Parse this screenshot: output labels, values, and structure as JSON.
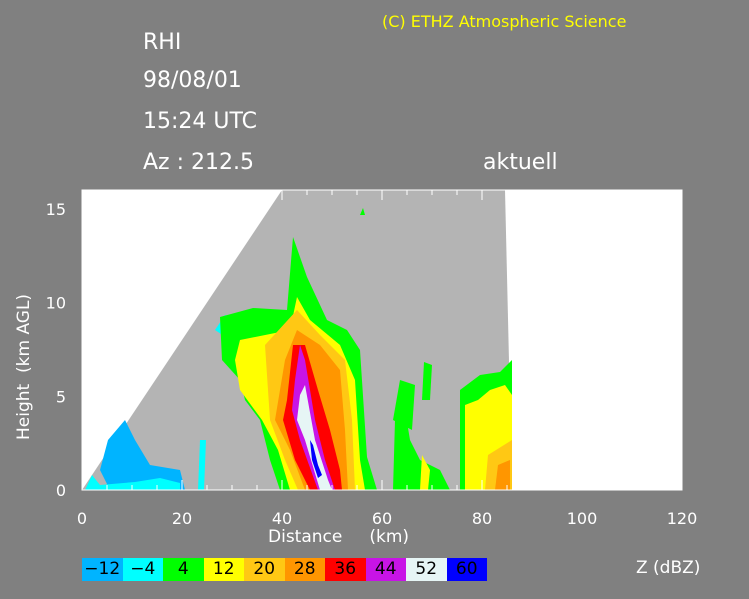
{
  "header": {
    "scan_type": "RHI",
    "date": "98/08/01",
    "time": "15:24 UTC",
    "azimuth": "Az : 212.5",
    "status": "aktuell",
    "copyright": "(C) ETHZ Atmospheric Science"
  },
  "chart_data": {
    "type": "heatmap",
    "xlabel": "Distance     (km)",
    "ylabel": "Height  (km AGL)",
    "xlim": [
      0,
      120
    ],
    "ylim": [
      0,
      16
    ],
    "xticks": [
      "0",
      "20",
      "40",
      "60",
      "80",
      "100",
      "120"
    ],
    "yticks": [
      "0",
      "5",
      "10",
      "15"
    ],
    "colorbar": {
      "label": "Z (dBZ)",
      "levels": [
        "-12",
        "-4",
        "4",
        "12",
        "20",
        "28",
        "36",
        "44",
        "52",
        "60"
      ],
      "colors": [
        "#00b4ff",
        "#00ffff",
        "#00ff00",
        "#ffff00",
        "#ffc814",
        "#ff9600",
        "#ff0000",
        "#c814e6",
        "#e6f5f5",
        "#0000ff"
      ]
    },
    "colors": {
      "background": "#808080",
      "scanned": "#b4b4b4",
      "unscanned": "#ffffff"
    }
  }
}
